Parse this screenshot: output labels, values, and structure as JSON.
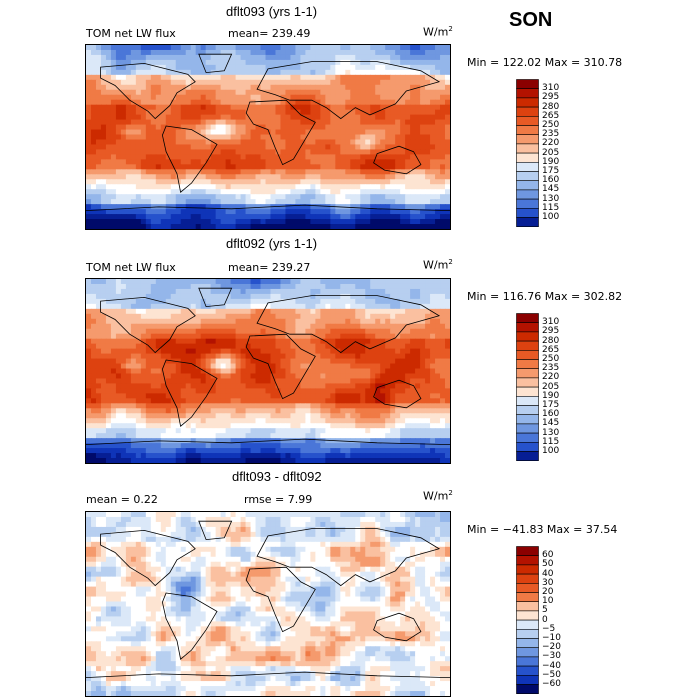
{
  "season": "SON",
  "units_base": "W/m",
  "units_exp": "2",
  "panels": [
    {
      "title": "dflt093 (yrs 1-1)",
      "left_label": "TOM net LW flux",
      "mid_label": "mean= 239.49",
      "minmax": "Min = 122.02  Max = 310.78",
      "colorbar_labels": [
        "310",
        "295",
        "280",
        "265",
        "250",
        "235",
        "220",
        "205",
        "190",
        "175",
        "160",
        "145",
        "130",
        "115",
        "100"
      ],
      "kind": "abs"
    },
    {
      "title": "dflt092 (yrs 1-1)",
      "left_label": "TOM net LW flux",
      "mid_label": "mean= 239.27",
      "minmax": "Min = 116.76  Max = 302.82",
      "colorbar_labels": [
        "310",
        "295",
        "280",
        "265",
        "250",
        "235",
        "220",
        "205",
        "190",
        "175",
        "160",
        "145",
        "130",
        "115",
        "100"
      ],
      "kind": "abs"
    },
    {
      "title": "dflt093 - dflt092",
      "left_label": "mean =    0.22",
      "mid_label": "rmse =    7.99",
      "minmax": "Min = −41.83  Max =   37.54",
      "colorbar_labels": [
        "60",
        "50",
        "40",
        "30",
        "20",
        "10",
        "5",
        "0",
        "−5",
        "−10",
        "−20",
        "−30",
        "−40",
        "−50",
        "−60"
      ],
      "kind": "diff"
    }
  ],
  "palette": [
    "#8b0000",
    "#b31200",
    "#cc2a00",
    "#dd4210",
    "#e85a25",
    "#f07a45",
    "#f59a6d",
    "#fac0a0",
    "#fde4d2",
    "#ffffff",
    "#dbe8f8",
    "#b7cff0",
    "#94b6ea",
    "#6f97e0",
    "#4a76d8",
    "#2652cc",
    "#0f34b8",
    "#061e94",
    "#000a6a"
  ],
  "chart_data": [
    {
      "type": "heatmap",
      "title": "dflt093 (yrs 1-1)",
      "variable": "TOM net LW flux",
      "units": "W/m2",
      "mean": 239.49,
      "min": 122.02,
      "max": 310.78,
      "levels": [
        100,
        115,
        130,
        145,
        160,
        175,
        190,
        205,
        220,
        235,
        250,
        265,
        280,
        295,
        310
      ]
    },
    {
      "type": "heatmap",
      "title": "dflt092 (yrs 1-1)",
      "variable": "TOM net LW flux",
      "units": "W/m2",
      "mean": 239.27,
      "min": 116.76,
      "max": 302.82,
      "levels": [
        100,
        115,
        130,
        145,
        160,
        175,
        190,
        205,
        220,
        235,
        250,
        265,
        280,
        295,
        310
      ]
    },
    {
      "type": "heatmap",
      "title": "dflt093 - dflt092",
      "units": "W/m2",
      "mean": 0.22,
      "rmse": 7.99,
      "min": -41.83,
      "max": 37.54,
      "levels": [
        -60,
        -50,
        -40,
        -30,
        -20,
        -10,
        -5,
        0,
        5,
        10,
        20,
        30,
        40,
        50,
        60
      ]
    }
  ]
}
